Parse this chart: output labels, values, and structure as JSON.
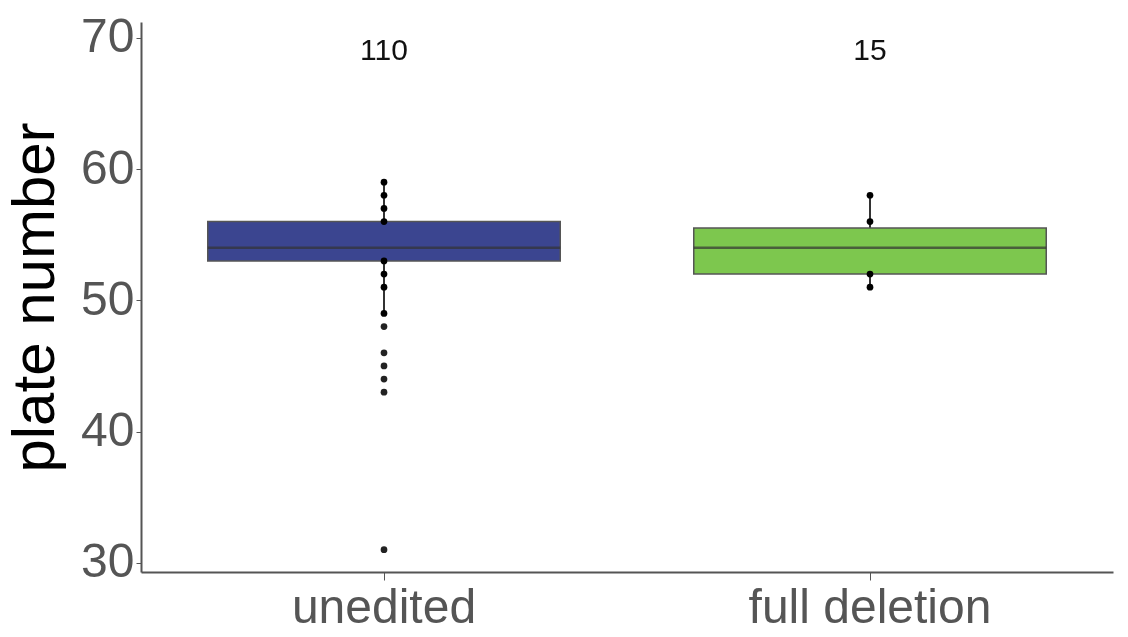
{
  "chart_data": {
    "type": "box",
    "ylabel": "plate number",
    "categories": [
      "unedited",
      "full deletion"
    ],
    "colors": [
      "#3b4590",
      "#7dc74e"
    ],
    "boxes": [
      {
        "low": 49,
        "q1": 53,
        "median": 54,
        "q3": 56,
        "high": 59,
        "outliers": [
          48,
          46,
          45,
          44,
          43,
          31
        ]
      },
      {
        "low": 51,
        "q1": 52,
        "median": 54,
        "q3": 55.5,
        "high": 58
      }
    ],
    "series": [
      {
        "type": "scatter",
        "color": "#000000",
        "x": [
          "unedited",
          "unedited",
          "unedited",
          "unedited",
          "unedited",
          "unedited",
          "unedited",
          "unedited",
          "full deletion",
          "full deletion",
          "full deletion",
          "full deletion"
        ],
        "values": [
          59,
          58,
          57,
          56,
          53,
          52,
          51,
          49,
          58,
          56,
          52,
          51
        ]
      }
    ],
    "ylim": [
      29.3,
      71.2
    ],
    "yticks": [
      30,
      40,
      50,
      60,
      70
    ],
    "grid": false,
    "annotations": [
      "110",
      "15"
    ]
  }
}
